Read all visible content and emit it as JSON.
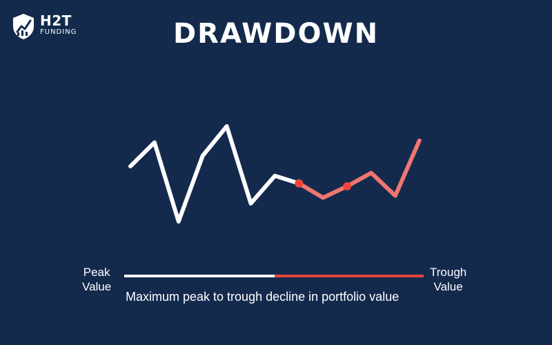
{
  "logo": {
    "name": "H2T",
    "sub": "FUNDING",
    "icon": "shield-chart-icon"
  },
  "title": "DRAWDOWN",
  "labels": {
    "peak_line1": "Peak",
    "peak_line2": "Value",
    "trough_line1": "Trough",
    "trough_line2": "Value",
    "caption": "Maximum peak to trough decline in portfolio value"
  },
  "colors": {
    "background": "#132a4d",
    "line_normal": "#ffffff",
    "line_drawdown": "#f0766f",
    "marker": "#f0443c",
    "bar_normal": "#ffffff",
    "bar_drawdown": "#e8453c"
  },
  "chart_data": {
    "type": "line",
    "series": [
      {
        "segment": "normal",
        "points": [
          [
            0,
            58
          ],
          [
            1,
            83
          ],
          [
            2,
            0
          ],
          [
            3,
            69
          ],
          [
            4,
            100
          ],
          [
            5,
            19
          ],
          [
            6,
            48
          ],
          [
            7,
            40
          ]
        ]
      },
      {
        "segment": "drawdown",
        "points": [
          [
            7,
            40
          ],
          [
            8,
            25
          ],
          [
            9,
            37
          ],
          [
            10,
            51
          ],
          [
            11,
            27
          ],
          [
            12,
            85
          ]
        ]
      }
    ],
    "markers": [
      [
        7,
        40
      ],
      [
        9,
        37
      ]
    ],
    "grid": false,
    "legend": "none"
  }
}
